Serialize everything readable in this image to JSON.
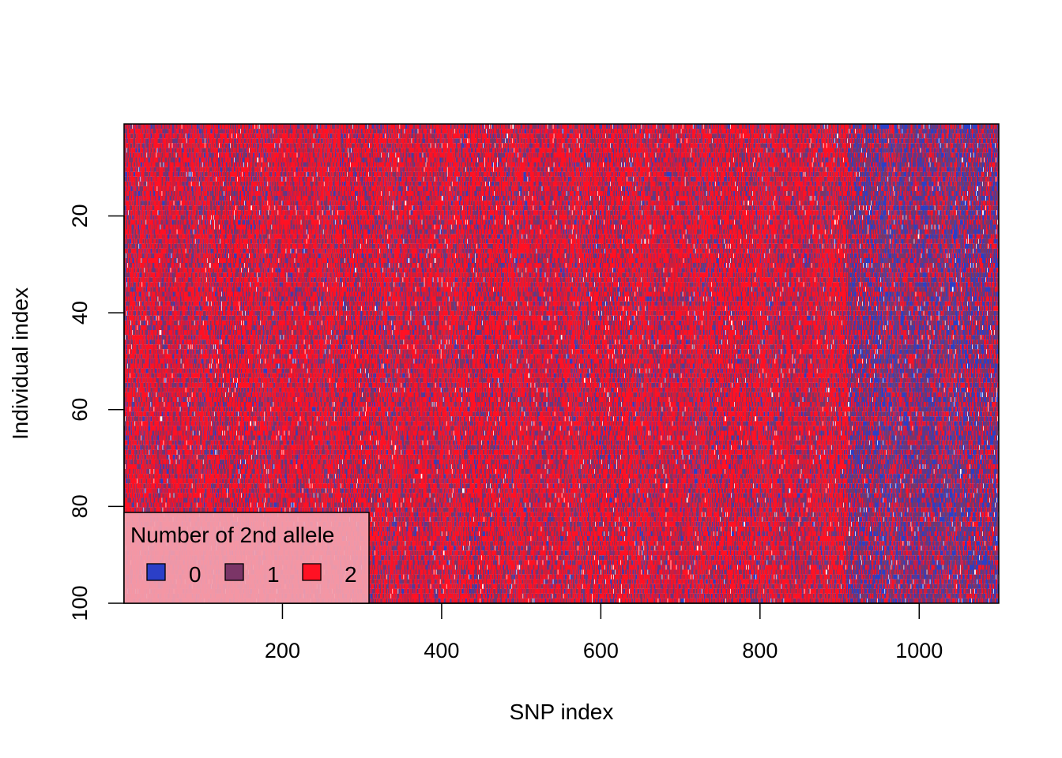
{
  "chart_data": {
    "type": "heatmap",
    "title": "",
    "xlabel": "SNP index",
    "ylabel": "Individual index",
    "xlim": [
      1,
      1100
    ],
    "ylim": [
      100,
      1
    ],
    "x_ticks": [
      200,
      400,
      600,
      800,
      1000
    ],
    "y_ticks": [
      20,
      40,
      60,
      80,
      100
    ],
    "n_snps": 1100,
    "n_individuals": 100,
    "value_levels": [
      0,
      1,
      2
    ],
    "colors": {
      "0": "#2b3fc7",
      "1": "#7b3567",
      "2": "#ff1123"
    },
    "regions": [
      {
        "snp_range": [
          1,
          910
        ],
        "approx_proportions": {
          "0": 0.12,
          "1": 0.33,
          "2": 0.55
        }
      },
      {
        "snp_range": [
          911,
          1100
        ],
        "approx_proportions": {
          "0": 0.35,
          "1": 0.4,
          "2": 0.25
        }
      }
    ],
    "missing_proportion": 0.02,
    "legend": {
      "title": "Number of 2nd allele",
      "position": "bottom-left",
      "entries": [
        {
          "label": "0",
          "color": "#2b3fc7"
        },
        {
          "label": "1",
          "color": "#7b3567"
        },
        {
          "label": "2",
          "color": "#ff1123"
        }
      ]
    },
    "grid": false
  }
}
